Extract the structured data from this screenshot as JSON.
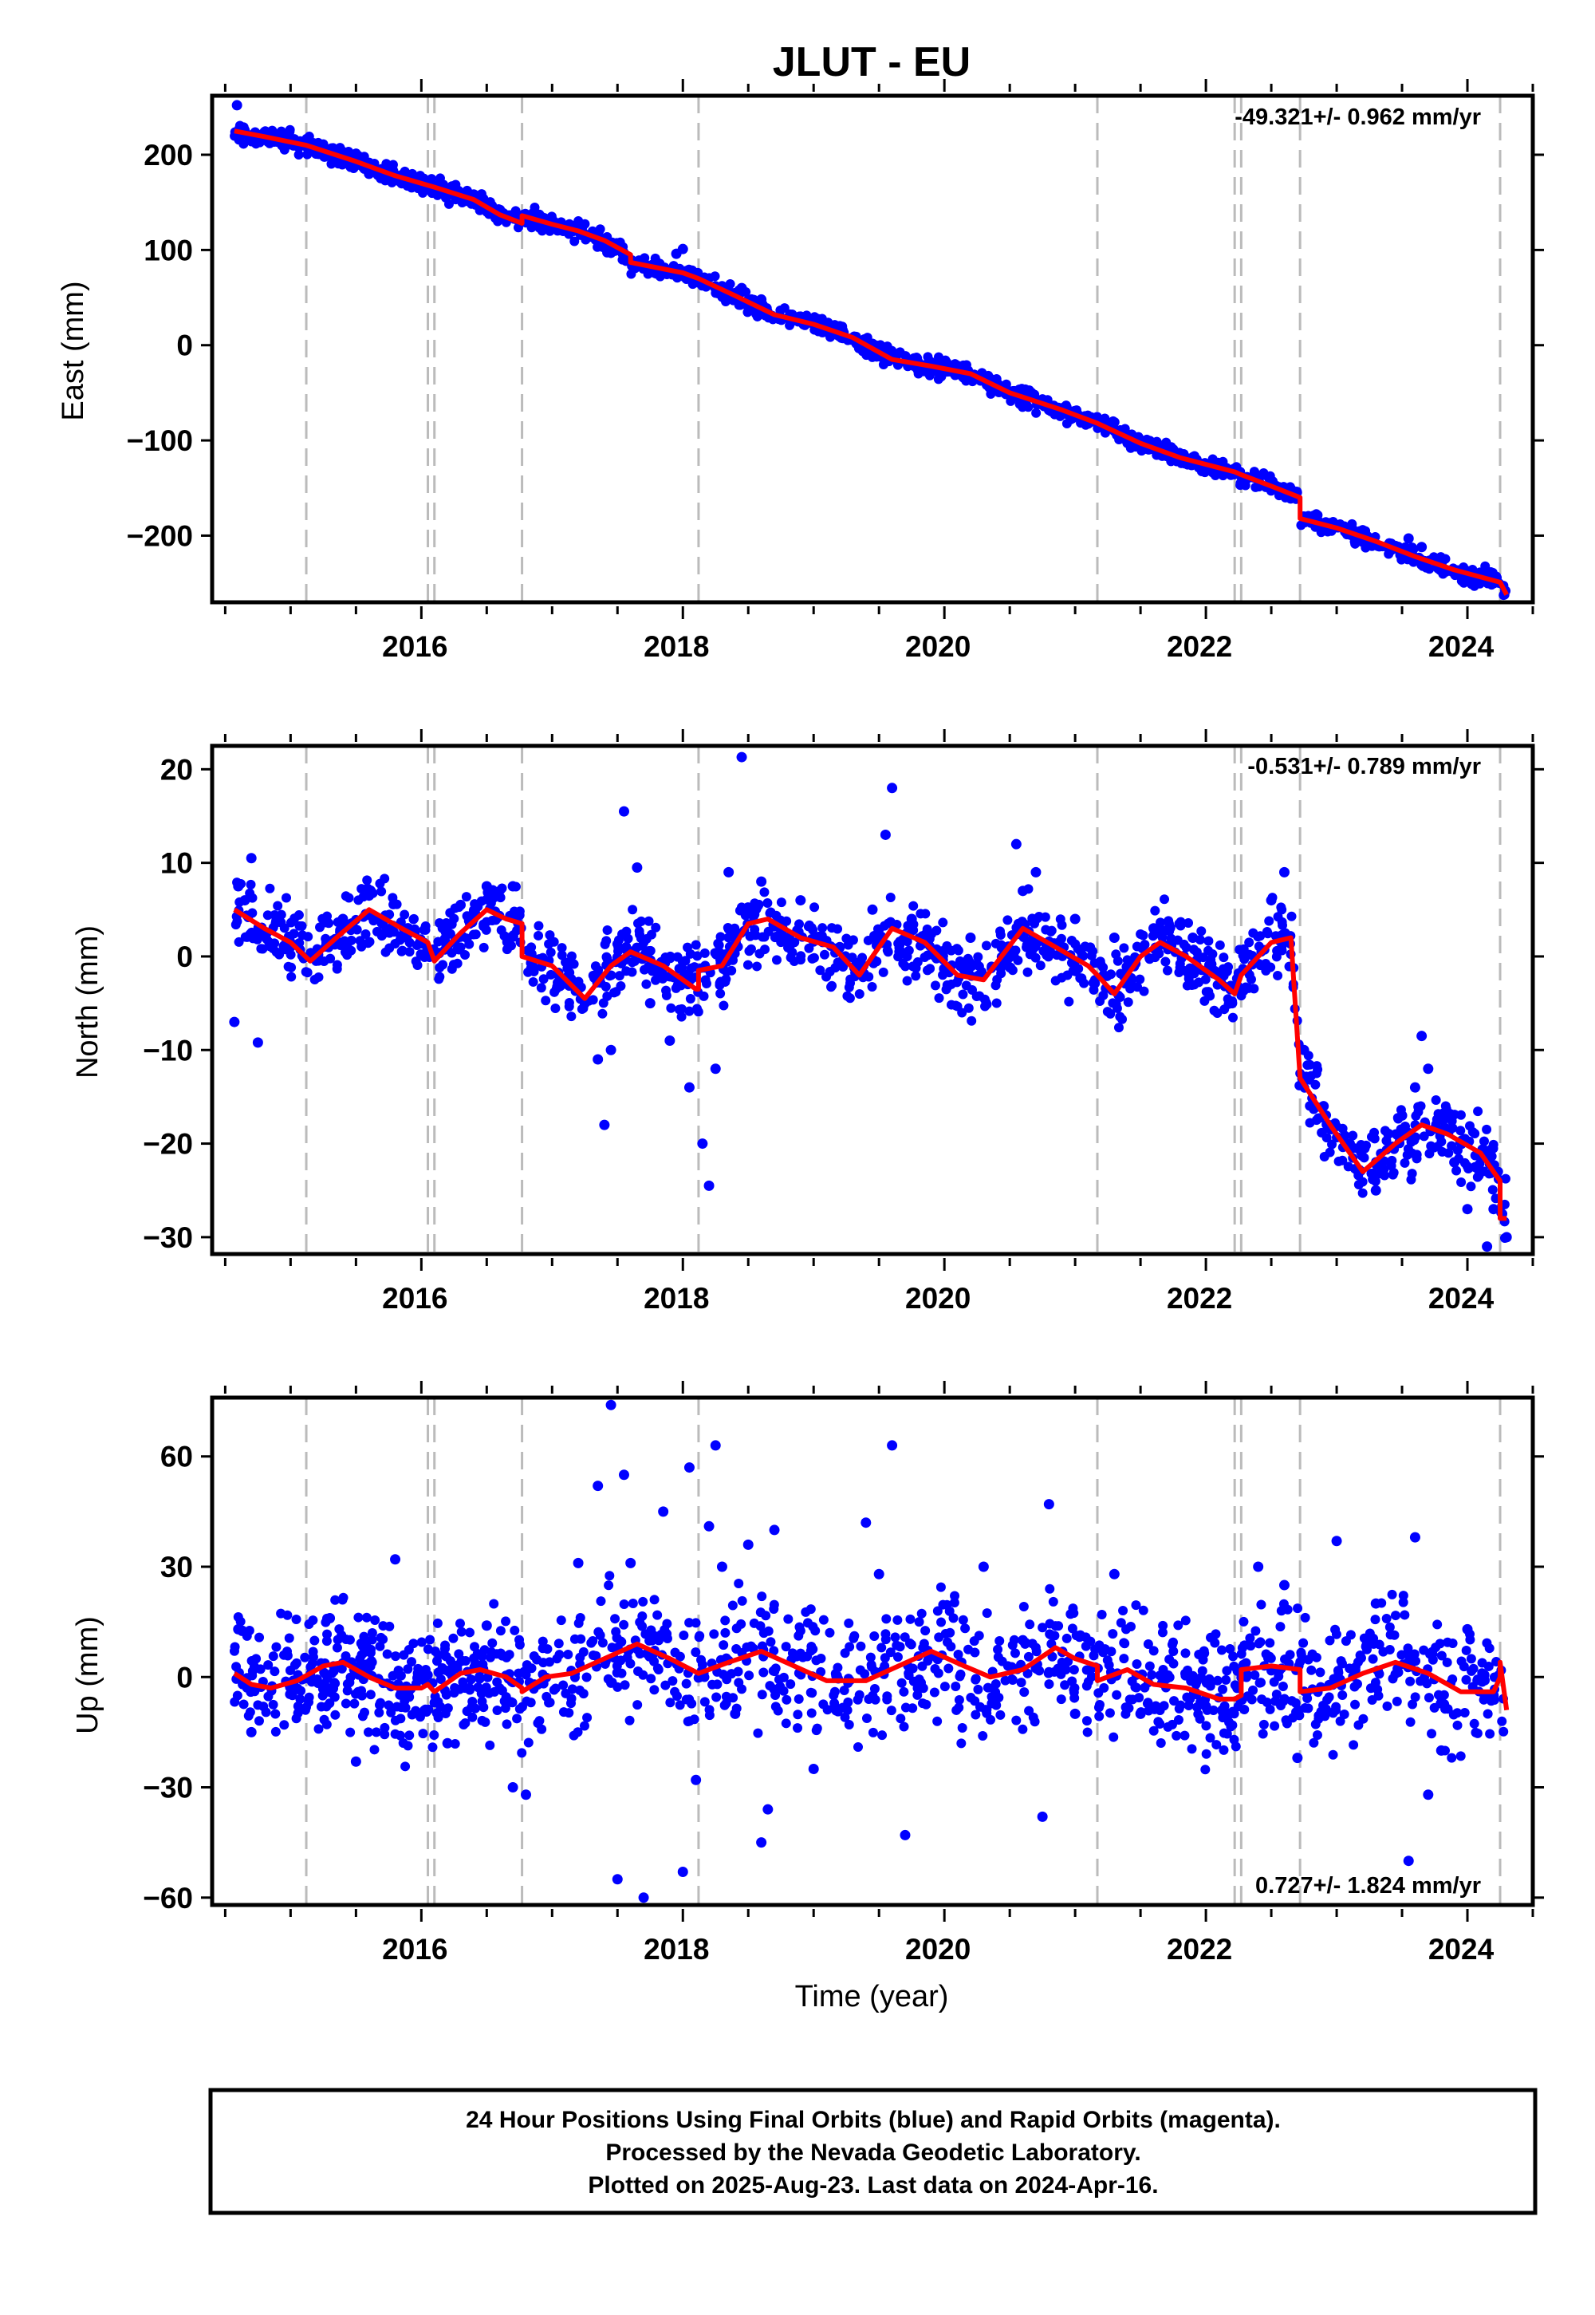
{
  "title": "JLUT - EU",
  "xlabel": "Time (year)",
  "footer": {
    "line1": "24 Hour Positions Using Final Orbits (blue) and Rapid Orbits (magenta).",
    "line2": "Processed by the Nevada Geodetic Laboratory.",
    "line3": "Plotted on 2025-Aug-23. Last data on 2024-Apr-16."
  },
  "colors": {
    "data": "#0000ff",
    "model": "#ff0000",
    "events": "#bbbbbb",
    "frame": "#000000"
  },
  "chart_data": [
    {
      "type": "scatter",
      "component": "East",
      "ylabel": "East (mm)",
      "rate": "-49.321+/- 0.962 mm/yr",
      "xlim": [
        2014.4,
        2024.5
      ],
      "ylim": [
        -270,
        262
      ],
      "xticks": [
        2016,
        2018,
        2020,
        2022,
        2024
      ],
      "yticks": [
        -200,
        -100,
        0,
        100,
        200
      ],
      "ytick_labels": [
        "−200",
        "−100",
        "0",
        "100",
        "200"
      ],
      "event_lines": [
        2015.12,
        2016.05,
        2016.1,
        2016.77,
        2018.12,
        2021.17,
        2022.22,
        2022.27,
        2022.72,
        2024.25
      ],
      "series": [
        {
          "role": "model",
          "x": [
            2014.57,
            2014.8,
            2015.12,
            2015.5,
            2015.8,
            2016.05,
            2016.1,
            2016.4,
            2016.6,
            2016.77,
            2016.77,
            2017.0,
            2017.2,
            2017.4,
            2017.6,
            2017.6,
            2018.0,
            2018.12,
            2018.4,
            2018.7,
            2019.0,
            2019.3,
            2019.6,
            2019.9,
            2020.2,
            2020.5,
            2020.9,
            2021.17,
            2021.5,
            2021.8,
            2022.22,
            2022.27,
            2022.5,
            2022.72,
            2022.72,
            2023.0,
            2023.3,
            2023.6,
            2023.9,
            2024.25,
            2024.3
          ],
          "y": [
            225,
            219,
            210,
            193,
            178,
            168,
            166,
            153,
            137,
            128,
            136,
            127,
            120,
            110,
            95,
            87,
            76,
            70,
            52,
            32,
            22,
            8,
            -15,
            -22,
            -30,
            -50,
            -68,
            -82,
            -103,
            -118,
            -133,
            -136,
            -148,
            -160,
            -182,
            -192,
            -206,
            -222,
            -236,
            -249,
            -262
          ]
        },
        {
          "role": "observations",
          "x": [
            2014.59,
            2014.6,
            2014.7,
            2014.85,
            2015.0,
            2015.2,
            2015.4,
            2015.6,
            2015.85,
            2016.2,
            2016.5,
            2016.8,
            2017.05,
            2017.35,
            2017.45,
            2017.55,
            2017.7,
            2017.95,
            2018.0,
            2018.3,
            2018.45,
            2018.6,
            2018.9,
            2019.2,
            2019.5,
            2019.8,
            2020.1,
            2020.4,
            2020.6,
            2020.8,
            2021.0,
            2021.3,
            2021.5,
            2021.7,
            2022.0,
            2022.4,
            2022.6,
            2022.9,
            2023.2,
            2023.5,
            2023.55,
            2023.65,
            2023.8,
            2024.0,
            2024.2,
            2024.29
          ],
          "y": [
            252,
            224,
            216,
            220,
            213,
            205,
            195,
            180,
            170,
            160,
            142,
            129,
            125,
            116,
            97,
            90,
            84,
            96,
            101,
            62,
            60,
            48,
            30,
            20,
            -8,
            -18,
            -26,
            -43,
            -60,
            -68,
            -74,
            -90,
            -108,
            -116,
            -126,
            -141,
            -152,
            -188,
            -197,
            -216,
            -203,
            -212,
            -230,
            -240,
            -250,
            -258
          ]
        }
      ]
    },
    {
      "type": "scatter",
      "component": "North",
      "ylabel": "North (mm)",
      "rate": "-0.531+/- 0.789 mm/yr",
      "xlim": [
        2014.4,
        2024.5
      ],
      "ylim": [
        -31.8,
        22.5
      ],
      "xticks": [
        2016,
        2018,
        2020,
        2022,
        2024
      ],
      "yticks": [
        -30,
        -20,
        -10,
        0,
        10,
        20
      ],
      "ytick_labels": [
        "−30",
        "−20",
        "−10",
        "0",
        "10",
        "20"
      ],
      "event_lines": [
        2015.12,
        2016.05,
        2016.1,
        2016.77,
        2018.12,
        2021.17,
        2022.22,
        2022.27,
        2022.72,
        2024.25
      ],
      "series": [
        {
          "role": "model",
          "x": [
            2014.57,
            2014.8,
            2015.0,
            2015.15,
            2015.35,
            2015.6,
            2015.85,
            2016.05,
            2016.1,
            2016.3,
            2016.5,
            2016.65,
            2016.77,
            2016.77,
            2017.0,
            2017.25,
            2017.45,
            2017.6,
            2017.85,
            2018.1,
            2018.12,
            2018.12,
            2018.3,
            2018.5,
            2018.65,
            2018.9,
            2019.15,
            2019.35,
            2019.6,
            2019.85,
            2020.1,
            2020.3,
            2020.6,
            2020.85,
            2021.1,
            2021.17,
            2021.3,
            2021.5,
            2021.65,
            2021.85,
            2022.1,
            2022.22,
            2022.27,
            2022.5,
            2022.65,
            2022.72,
            2022.72,
            2022.95,
            2023.2,
            2023.45,
            2023.65,
            2023.85,
            2024.1,
            2024.25,
            2024.25,
            2024.3
          ],
          "y": [
            5,
            3,
            1.5,
            -0.5,
            2,
            5,
            3,
            1.5,
            -0.5,
            2.5,
            5,
            4,
            3.5,
            0,
            -1,
            -4.5,
            -1,
            0.5,
            -1,
            -3.5,
            -3.5,
            -1.5,
            -1,
            3.5,
            4,
            2,
            1,
            -2,
            3,
            1.5,
            -2,
            -2.5,
            3,
            1,
            -1,
            -2,
            -4,
            0,
            1.5,
            0,
            -2.5,
            -4,
            -2,
            1.5,
            2,
            -13,
            -13,
            -18,
            -23,
            -20,
            -18,
            -19,
            -21,
            -24,
            -28,
            -28
          ]
        },
        {
          "role": "observations",
          "x": [
            2014.57,
            2014.6,
            2014.65,
            2014.7,
            2014.75,
            2015.4,
            2015.6,
            2015.9,
            2016.3,
            2016.5,
            2016.7,
            2017.05,
            2017.25,
            2017.35,
            2017.4,
            2017.45,
            2017.55,
            2017.65,
            2017.75,
            2017.9,
            2018.05,
            2018.15,
            2018.2,
            2018.25,
            2018.35,
            2018.45,
            2018.6,
            2018.9,
            2019.2,
            2019.45,
            2019.55,
            2019.6,
            2019.75,
            2020.2,
            2020.55,
            2020.6,
            2020.7,
            2021.0,
            2021.3,
            2021.6,
            2021.9,
            2022.2,
            2022.5,
            2022.6,
            2022.75,
            2022.9,
            2023.1,
            2023.3,
            2023.5,
            2023.6,
            2023.65,
            2023.7,
            2023.9,
            2024.0,
            2024.15,
            2024.2,
            2024.3
          ],
          "y": [
            -7,
            7.5,
            6,
            10.5,
            -9.2,
            4,
            6.5,
            3,
            5.5,
            7.5,
            7.5,
            -2,
            -5,
            -11,
            -18,
            -10,
            15.5,
            9.5,
            -5,
            -9,
            -14,
            -20,
            -24.5,
            -12,
            9,
            21.3,
            8,
            6,
            1,
            5,
            13,
            18,
            4,
            2,
            12,
            7,
            9,
            4,
            2,
            3,
            2,
            -5,
            6,
            9,
            -10,
            -16,
            -20,
            -25,
            -17,
            -14,
            -8.5,
            -12,
            -22,
            -27,
            -31,
            -27,
            -30
          ]
        }
      ]
    },
    {
      "type": "scatter",
      "component": "Up",
      "ylabel": "Up (mm)",
      "rate": "0.727+/- 1.824 mm/yr",
      "xlim": [
        2014.4,
        2024.5
      ],
      "ylim": [
        -62,
        76
      ],
      "xticks": [
        2016,
        2018,
        2020,
        2022,
        2024
      ],
      "yticks": [
        -60,
        -30,
        0,
        30,
        60
      ],
      "ytick_labels": [
        "−60",
        "−30",
        "0",
        "30",
        "60"
      ],
      "event_lines": [
        2015.12,
        2016.05,
        2016.1,
        2016.77,
        2018.12,
        2021.17,
        2022.22,
        2022.27,
        2022.72,
        2024.25
      ],
      "series": [
        {
          "role": "model",
          "x": [
            2014.57,
            2014.7,
            2014.85,
            2015.05,
            2015.25,
            2015.4,
            2015.6,
            2015.8,
            2016.0,
            2016.05,
            2016.1,
            2016.3,
            2016.45,
            2016.65,
            2016.77,
            2016.77,
            2016.95,
            2017.15,
            2017.4,
            2017.65,
            2017.9,
            2018.12,
            2018.35,
            2018.6,
            2018.85,
            2019.1,
            2019.4,
            2019.65,
            2019.9,
            2020.15,
            2020.35,
            2020.6,
            2020.85,
            2021.0,
            2021.17,
            2021.17,
            2021.4,
            2021.6,
            2021.85,
            2022.1,
            2022.22,
            2022.27,
            2022.27,
            2022.5,
            2022.72,
            2022.72,
            2022.95,
            2023.2,
            2023.45,
            2023.7,
            2023.95,
            2024.2,
            2024.25,
            2024.25,
            2024.3
          ],
          "y": [
            1,
            -2,
            -3,
            -1,
            3,
            4,
            0,
            -3,
            -3,
            -2,
            -4,
            1,
            2,
            0,
            -3,
            -4,
            0,
            1,
            5,
            9,
            5,
            1,
            4,
            7,
            3,
            -1,
            -1,
            3,
            7,
            3,
            0,
            2,
            8,
            5,
            3,
            -1,
            2,
            -2,
            -3,
            -6,
            -6,
            -5,
            2,
            3,
            2,
            -4,
            -3,
            1,
            4,
            1,
            -4,
            -4,
            0,
            4,
            -9
          ]
        },
        {
          "role": "observations",
          "x": [
            2014.6,
            2014.7,
            2015.3,
            2015.5,
            2015.8,
            2016.2,
            2016.5,
            2016.7,
            2016.8,
            2017.2,
            2017.35,
            2017.45,
            2017.5,
            2017.55,
            2017.6,
            2017.7,
            2017.85,
            2018.0,
            2018.05,
            2018.1,
            2018.2,
            2018.25,
            2018.3,
            2018.4,
            2018.5,
            2018.6,
            2018.65,
            2018.7,
            2019.0,
            2019.4,
            2019.5,
            2019.6,
            2019.7,
            2020.3,
            2020.6,
            2020.75,
            2020.8,
            2021.0,
            2021.3,
            2021.5,
            2022.0,
            2022.4,
            2022.6,
            2022.7,
            2023.0,
            2023.3,
            2023.55,
            2023.6,
            2023.7,
            2023.8,
            2024.0,
            2024.2
          ],
          "y": [
            13,
            -15,
            16,
            -23,
            32,
            -18,
            14,
            -30,
            -32,
            31,
            52,
            74,
            -55,
            55,
            31,
            -60,
            45,
            -53,
            57,
            -28,
            41,
            63,
            30,
            -10,
            36,
            -45,
            -36,
            40,
            -25,
            42,
            28,
            63,
            -43,
            30,
            10,
            -38,
            47,
            -10,
            28,
            -10,
            -8,
            30,
            25,
            -22,
            37,
            20,
            -50,
            38,
            -32,
            -20,
            13,
            -5
          ]
        }
      ]
    }
  ]
}
